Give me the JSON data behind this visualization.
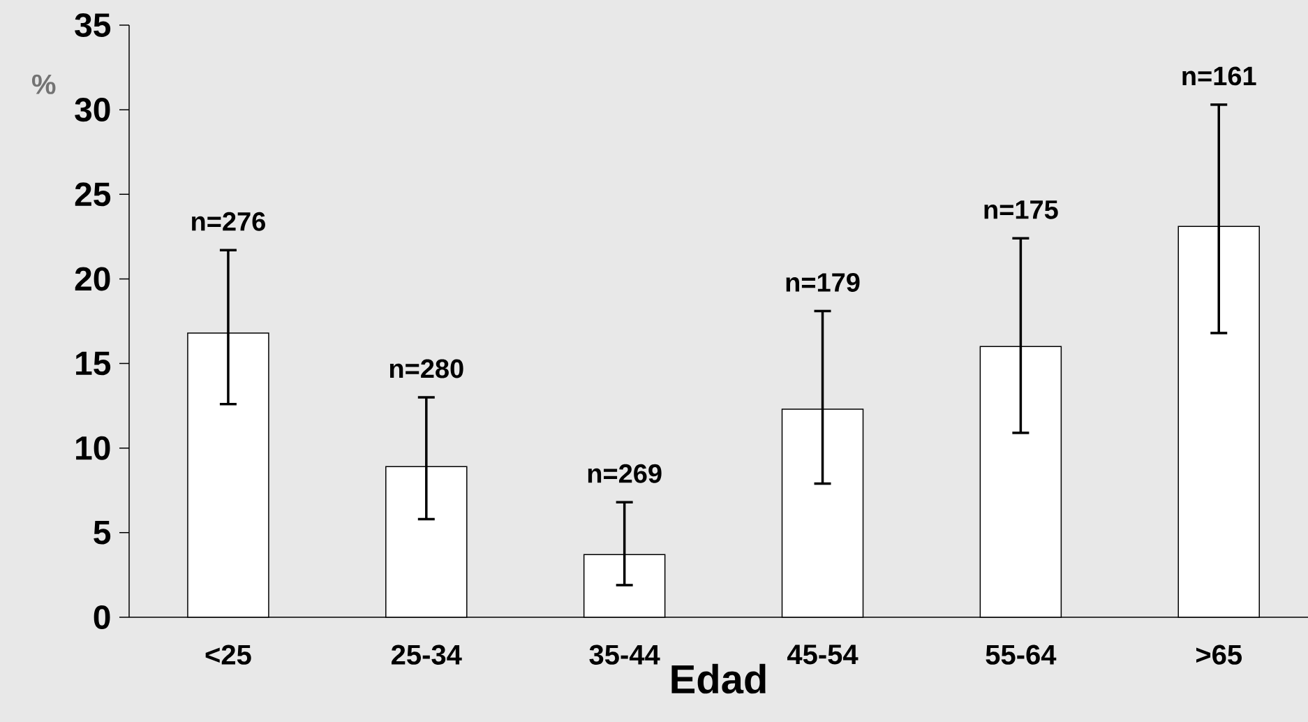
{
  "chart_data": {
    "type": "bar",
    "xlabel": "Edad",
    "ylabel": "%",
    "categories": [
      "<25",
      "25-34",
      "35-44",
      "45-54",
      "55-64",
      ">65"
    ],
    "values": [
      16.8,
      8.9,
      3.7,
      12.3,
      16.0,
      23.1
    ],
    "errors": [
      [
        12.6,
        21.7
      ],
      [
        5.8,
        13.0
      ],
      [
        1.9,
        6.8
      ],
      [
        7.9,
        18.1
      ],
      [
        10.9,
        22.4
      ],
      [
        16.8,
        30.3
      ]
    ],
    "color": "#ffffff",
    "ylim": [
      0,
      35
    ],
    "yticks": [
      0,
      5,
      10,
      15,
      20,
      25,
      30,
      35
    ],
    "annotations": [
      "n=276",
      "n=280",
      "n=269",
      "n=179",
      "n=175",
      "n=161"
    ]
  }
}
